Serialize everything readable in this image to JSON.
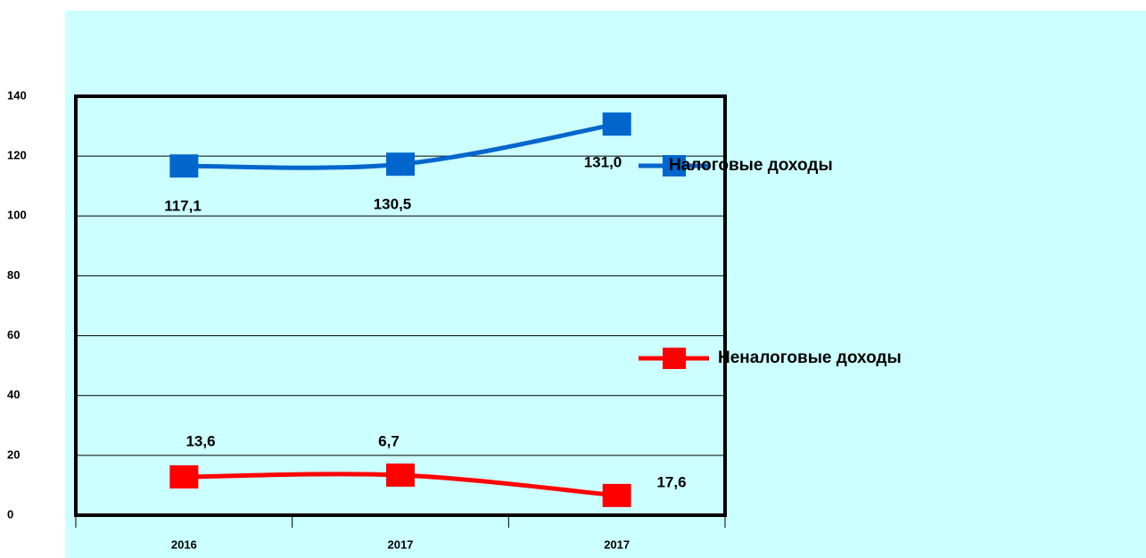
{
  "chart_data": {
    "type": "line",
    "categories": [
      "2016",
      "2017",
      "2017"
    ],
    "series": [
      {
        "name": "Налоговые доходы",
        "color": "#0066cc",
        "values": [
          116.7,
          117.3,
          130.7
        ]
      },
      {
        "name": "Неналоговые  доходы",
        "color": "#ff0000",
        "values": [
          12.8,
          13.4,
          6.6
        ]
      }
    ],
    "annotations": [
      "117,1",
      "130,5",
      "131,0",
      "13,6",
      "6,7",
      "17,6"
    ],
    "ylim": [
      0,
      140
    ],
    "yticks": [
      0,
      20,
      40,
      60,
      80,
      100,
      120,
      140
    ],
    "grid": true
  }
}
